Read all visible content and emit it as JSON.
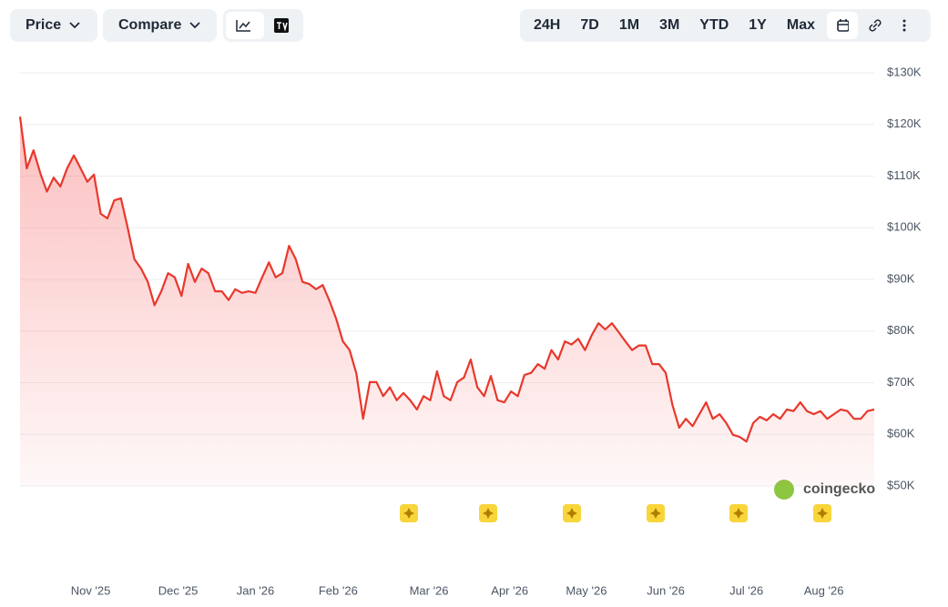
{
  "toolbar": {
    "price": "Price",
    "compare": "Compare",
    "ranges": [
      "24H",
      "7D",
      "1M",
      "3M",
      "YTD",
      "1Y",
      "Max"
    ]
  },
  "chart_data": {
    "type": "line",
    "color": "#e8382c",
    "values": [
      121500,
      111500,
      115000,
      110600,
      107000,
      109700,
      108000,
      111500,
      114000,
      111500,
      108900,
      110300,
      102700,
      101800,
      105300,
      105700,
      100000,
      93900,
      92100,
      89500,
      85000,
      87700,
      91200,
      90400,
      86800,
      93000,
      89500,
      92100,
      91200,
      87700,
      87700,
      86000,
      88100,
      87400,
      87700,
      87400,
      90400,
      93300,
      90400,
      91200,
      96500,
      93900,
      89500,
      89100,
      88100,
      88900,
      85900,
      82400,
      78000,
      76300,
      71800,
      63000,
      70100,
      70100,
      67400,
      69100,
      66600,
      68000,
      66600,
      64800,
      67400,
      66600,
      72200,
      67400,
      66600,
      70100,
      71000,
      74500,
      69100,
      67400,
      71300,
      66600,
      66200,
      68300,
      67400,
      71500,
      71900,
      73600,
      72700,
      76300,
      74500,
      78000,
      77400,
      78500,
      76300,
      79200,
      81500,
      80300,
      81500,
      79800,
      78000,
      76300,
      77200,
      77200,
      73600,
      73600,
      71900,
      65700,
      61300,
      63000,
      61600,
      63900,
      66200,
      63000,
      63900,
      62200,
      59900,
      59500,
      58600,
      62200,
      63400,
      62700,
      63900,
      63000,
      64800,
      64500,
      66200,
      64500,
      63900,
      64500,
      63000,
      63900,
      64800,
      64500,
      63000,
      63000,
      64500,
      64800
    ],
    "ylim": [
      50000,
      130000
    ],
    "yticks": [
      {
        "value": 50000,
        "label": "$50K"
      },
      {
        "value": 60000,
        "label": "$60K"
      },
      {
        "value": 70000,
        "label": "$70K"
      },
      {
        "value": 80000,
        "label": "$80K"
      },
      {
        "value": 90000,
        "label": "$90K"
      },
      {
        "value": 100000,
        "label": "$100K"
      },
      {
        "value": 110000,
        "label": "$110K"
      },
      {
        "value": 120000,
        "label": "$120K"
      },
      {
        "value": 130000,
        "label": "$130K"
      }
    ],
    "xlim": [
      0,
      127
    ],
    "xticks": [
      {
        "value": 10.5,
        "label": "Nov '25"
      },
      {
        "value": 23.5,
        "label": "Dec '25"
      },
      {
        "value": 35,
        "label": "Jan '26"
      },
      {
        "value": 47.3,
        "label": "Feb '26"
      },
      {
        "value": 60.8,
        "label": "Mar '26"
      },
      {
        "value": 72.8,
        "label": "Apr '26"
      },
      {
        "value": 84.2,
        "label": "May '26"
      },
      {
        "value": 96,
        "label": "Jun '26"
      },
      {
        "value": 108,
        "label": "Jul '26"
      },
      {
        "value": 119.5,
        "label": "Aug '26"
      }
    ],
    "grid": true,
    "watermark": "coingecko"
  }
}
